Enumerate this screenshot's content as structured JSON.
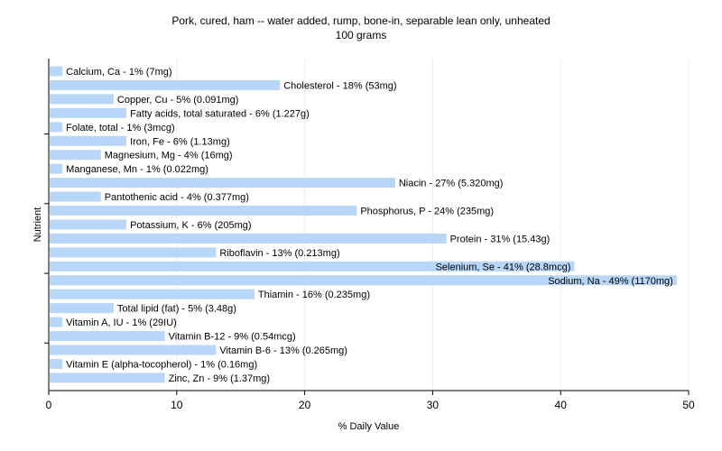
{
  "chart_data": {
    "type": "bar",
    "orientation": "horizontal",
    "title": "Pork, cured, ham -- water added, rump, bone-in, separable lean only, unheated",
    "subtitle": "100 grams",
    "xlabel": "% Daily Value",
    "ylabel": "Nutrient",
    "xlim": [
      0,
      50
    ],
    "xticks": [
      0,
      10,
      20,
      30,
      40,
      50
    ],
    "grid": true,
    "bar_color": "#b8d6f7",
    "bars": [
      {
        "value": 1,
        "label": "Calcium, Ca - 1% (7mg)"
      },
      {
        "value": 18,
        "label": "Cholesterol - 18% (53mg)"
      },
      {
        "value": 5,
        "label": "Copper, Cu - 5% (0.091mg)"
      },
      {
        "value": 6,
        "label": "Fatty acids, total saturated - 6% (1.227g)"
      },
      {
        "value": 1,
        "label": "Folate, total - 1% (3mcg)"
      },
      {
        "value": 6,
        "label": "Iron, Fe - 6% (1.13mg)"
      },
      {
        "value": 4,
        "label": "Magnesium, Mg - 4% (16mg)"
      },
      {
        "value": 1,
        "label": "Manganese, Mn - 1% (0.022mg)"
      },
      {
        "value": 27,
        "label": "Niacin - 27% (5.320mg)"
      },
      {
        "value": 4,
        "label": "Pantothenic acid - 4% (0.377mg)"
      },
      {
        "value": 24,
        "label": "Phosphorus, P - 24% (235mg)"
      },
      {
        "value": 6,
        "label": "Potassium, K - 6% (205mg)"
      },
      {
        "value": 31,
        "label": "Protein - 31% (15.43g)"
      },
      {
        "value": 13,
        "label": "Riboflavin - 13% (0.213mg)"
      },
      {
        "value": 41,
        "label": "Selenium, Se - 41% (28.8mcg)"
      },
      {
        "value": 49,
        "label": "Sodium, Na - 49% (1170mg)"
      },
      {
        "value": 16,
        "label": "Thiamin - 16% (0.235mg)"
      },
      {
        "value": 5,
        "label": "Total lipid (fat) - 5% (3.48g)"
      },
      {
        "value": 1,
        "label": "Vitamin A, IU - 1% (29IU)"
      },
      {
        "value": 9,
        "label": "Vitamin B-12 - 9% (0.54mcg)"
      },
      {
        "value": 13,
        "label": "Vitamin B-6 - 13% (0.265mg)"
      },
      {
        "value": 1,
        "label": "Vitamin E (alpha-tocopherol) - 1% (0.16mg)"
      },
      {
        "value": 9,
        "label": "Zinc, Zn - 9% (1.37mg)"
      }
    ]
  }
}
